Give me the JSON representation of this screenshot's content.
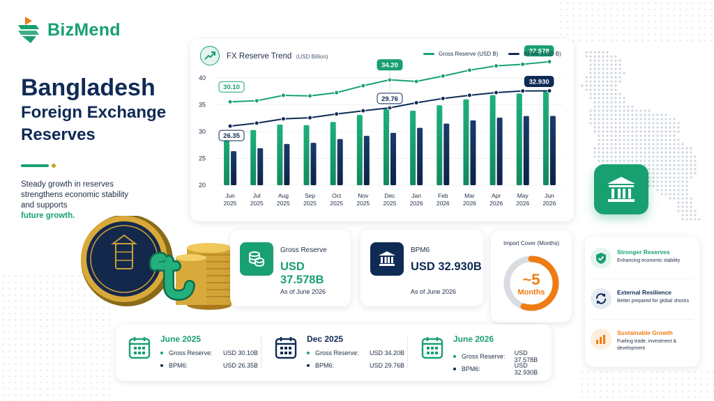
{
  "brand": {
    "name": "BizMend",
    "accent": "#18a070",
    "navy": "#0f2a55",
    "orange": "#ef7b12"
  },
  "headline": {
    "line1": "Bangladesh",
    "line2": "Foreign Exchange",
    "line3": "Reserves"
  },
  "tagline": {
    "text": "Steady growth in reserves strengthens economic stability and supports",
    "highlight": "future growth."
  },
  "coin": {
    "inscription": "বাংলাদেশ ব্যাংক",
    "symbol": "৳"
  },
  "chart_data": {
    "type": "bar+line",
    "title": "FX Reserve Trend",
    "unit": "(USD Billion)",
    "categories": [
      {
        "month": "Jun",
        "year": "2025"
      },
      {
        "month": "Jul",
        "year": "2025"
      },
      {
        "month": "Aug",
        "year": "2025"
      },
      {
        "month": "Sep",
        "year": "2025"
      },
      {
        "month": "Oct",
        "year": "2025"
      },
      {
        "month": "Nov",
        "year": "2025"
      },
      {
        "month": "Dec",
        "year": "2025"
      },
      {
        "month": "Jan",
        "year": "2026"
      },
      {
        "month": "Feb",
        "year": "2026"
      },
      {
        "month": "Mar",
        "year": "2026"
      },
      {
        "month": "Apr",
        "year": "2026"
      },
      {
        "month": "May",
        "year": "2026"
      },
      {
        "month": "Jun",
        "year": "2026"
      }
    ],
    "ylim": [
      20,
      40
    ],
    "yticks": [
      20,
      25,
      30,
      35,
      40
    ],
    "grid": true,
    "legend_position": "top-right",
    "series": [
      {
        "name": "Gross Reserve (USD B)",
        "color": "#18a070",
        "values": [
          30.1,
          30.3,
          31.3,
          31.2,
          31.8,
          33.1,
          34.2,
          33.9,
          34.9,
          36.0,
          36.8,
          37.1,
          37.578
        ]
      },
      {
        "name": "BPM6 (USD B)",
        "color": "#0f2a55",
        "values": [
          26.35,
          26.9,
          27.7,
          27.9,
          28.6,
          29.2,
          29.76,
          30.7,
          31.5,
          32.1,
          32.6,
          32.9,
          32.93
        ]
      }
    ],
    "callouts": [
      {
        "series": 0,
        "index": 0,
        "label": "30.10"
      },
      {
        "series": 1,
        "index": 0,
        "label": "26.35"
      },
      {
        "series": 0,
        "index": 6,
        "label": "34.20"
      },
      {
        "series": 1,
        "index": 6,
        "label": "29.76"
      },
      {
        "series": 0,
        "index": 12,
        "label": "37.578"
      },
      {
        "series": 1,
        "index": 12,
        "label": "32.930"
      }
    ]
  },
  "stats": {
    "gross": {
      "label": "Gross Reserve",
      "value": "USD 37.578B",
      "asof": "As of June 2026"
    },
    "bpm6": {
      "label": "BPM6",
      "value": "USD 32.930B",
      "asof": "As of June 2026"
    }
  },
  "import_cover": {
    "title": "Import Cover (Months)",
    "value": "~5",
    "unit": "Months",
    "fill_fraction": 0.55
  },
  "benefits": [
    {
      "title": "Stronger Reserves",
      "desc": "Enhancing economic stability",
      "icon": "shield-check-icon",
      "color": "#18a070"
    },
    {
      "title": "External Resilience",
      "desc": "Better prepared for global shocks",
      "icon": "cycle-arrows-icon",
      "color": "#0f2a55"
    },
    {
      "title": "Sustainable Growth",
      "desc": "Fueling trade, investment & development",
      "icon": "bar-chart-icon",
      "color": "#ef7b12"
    }
  ],
  "snapshots": [
    {
      "date": "June 2025",
      "gross_label": "Gross Reserve:",
      "gross": "USD 30.10B",
      "bpm_label": "BPM6:",
      "bpm": "USD 26.35B",
      "color": "#18a070"
    },
    {
      "date": "Dec 2025",
      "gross_label": "Gross Reserve:",
      "gross": "USD 34.20B",
      "bpm_label": "BPM6:",
      "bpm": "USD 29.76B",
      "color": "#0f2a55"
    },
    {
      "date": "June 2026",
      "gross_label": "Gross Reserve:",
      "gross": "USD 37.578B",
      "bpm_label": "BPM6:",
      "bpm": "USD 32.930B",
      "color": "#18a070"
    }
  ]
}
